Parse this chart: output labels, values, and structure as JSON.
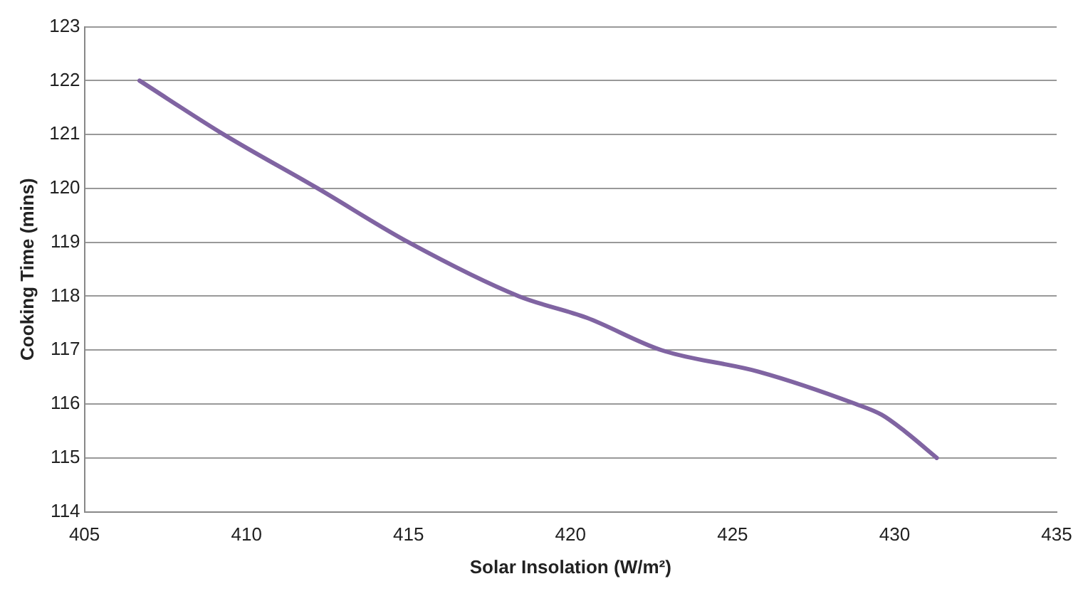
{
  "chart_data": {
    "type": "line",
    "xlabel": "Solar Insolation (W/m²)",
    "ylabel": "Cooking Time (mins)",
    "x": [
      406.7,
      409.3,
      412.2,
      415.0,
      418.4,
      420.5,
      422.8,
      425.8,
      428.8,
      429.6,
      430.3,
      431.3
    ],
    "series": [
      {
        "color": "#8064a2",
        "values": [
          122,
          121,
          120,
          119,
          118,
          117.6,
          117,
          116.6,
          116,
          115.8,
          115.5,
          115
        ]
      }
    ],
    "xlim": [
      405,
      435
    ],
    "xticks": [
      405,
      410,
      415,
      420,
      425,
      430,
      435
    ],
    "ylim": [
      114,
      123
    ],
    "yticks": [
      114,
      115,
      116,
      117,
      118,
      119,
      120,
      121,
      122,
      123
    ],
    "grid": "y",
    "legend": false,
    "marker": "none",
    "line_style": "solid"
  }
}
